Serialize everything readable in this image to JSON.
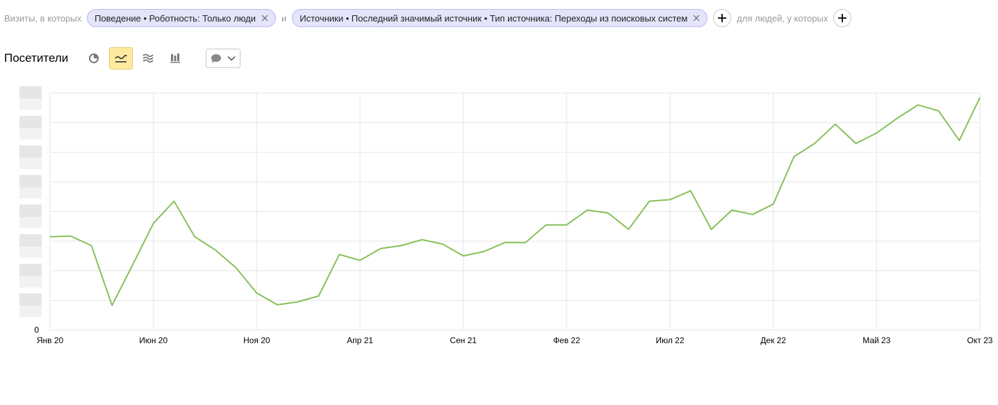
{
  "filters": {
    "prefix_label": "Визиты, в которых",
    "chips": [
      {
        "label": "Поведение • Роботность: Только люди"
      },
      {
        "label": "Источники • Последний значимый источник • Тип источника: Переходы из поисковых систем"
      }
    ],
    "joiner": "и",
    "people_label": "для людей, у которых"
  },
  "toolbar": {
    "metric_title": "Посетители",
    "view_buttons": [
      {
        "icon": "pie-chart-icon",
        "active": false
      },
      {
        "icon": "line-chart-icon",
        "active": true
      },
      {
        "icon": "area-chart-icon",
        "active": false
      },
      {
        "icon": "bar-chart-icon",
        "active": false
      }
    ],
    "notes_icon": "comment-icon"
  },
  "colors": {
    "line": "#86c05a",
    "grid": "#e5e5e5",
    "chip_bg": "#e4e4fb",
    "active_bg": "#ffeba0"
  },
  "chart_data": {
    "type": "line",
    "x": [
      "Янв 20",
      "Фев 20",
      "Мар 20",
      "Апр 20",
      "Май 20",
      "Июн 20",
      "Июл 20",
      "Авг 20",
      "Сен 20",
      "Окт 20",
      "Ноя 20",
      "Дек 20",
      "Янв 21",
      "Фев 21",
      "Мар 21",
      "Апр 21",
      "Май 21",
      "Июн 21",
      "Июл 21",
      "Авг 21",
      "Сен 21",
      "Окт 21",
      "Ноя 21",
      "Дек 21",
      "Янв 22",
      "Фев 22",
      "Мар 22",
      "Апр 22",
      "Май 22",
      "Июн 22",
      "Июл 22",
      "Авг 22",
      "Сен 22",
      "Окт 22",
      "Ноя 22",
      "Дек 22",
      "Янв 23",
      "Фев 23",
      "Мар 23",
      "Апр 23",
      "Май 23",
      "Июн 23",
      "Июл 23",
      "Авг 23",
      "Сен 23",
      "Окт 23"
    ],
    "series": [
      {
        "name": "",
        "values": [
          31.5,
          31.7,
          28.5,
          8.3,
          22,
          36,
          43.5,
          31.5,
          27,
          21,
          12.5,
          8.5,
          9.5,
          11.5,
          25.5,
          23.5,
          27.5,
          28.5,
          30.5,
          29,
          25,
          26.5,
          29.5,
          29.5,
          35.5,
          35.5,
          40.5,
          39.5,
          34,
          43.5,
          44,
          47,
          34,
          40.5,
          39,
          42.5,
          58.5,
          63,
          69.5,
          63,
          66.5,
          71.5,
          76,
          74,
          64,
          78.5
        ]
      }
    ],
    "x_tick_labels": [
      "Янв 20",
      "Июн 20",
      "Ноя 20",
      "Апр 21",
      "Сен 21",
      "Фев 22",
      "Июл 22",
      "Дек 22",
      "Май 23",
      "Окт 23"
    ],
    "y_tick_labels": [
      "0"
    ],
    "ylim": [
      0,
      80
    ],
    "grid": true,
    "legend": "none",
    "title": "",
    "xlabel": "",
    "ylabel": ""
  }
}
